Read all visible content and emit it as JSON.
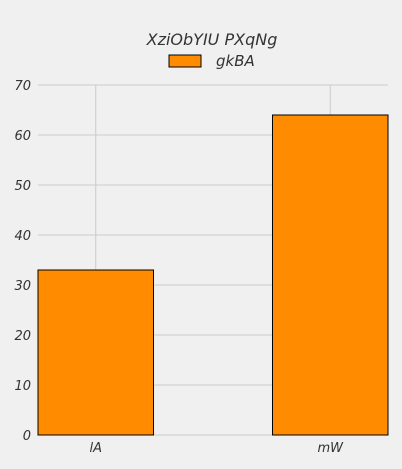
{
  "chart_data": {
    "type": "bar",
    "title": "XziObYIU PXqNg",
    "xlabel": "",
    "ylabel": "",
    "categories": [
      "lA",
      "mW"
    ],
    "series": [
      {
        "name": "gkBA",
        "values": [
          33,
          64
        ],
        "color": "#ff8c00"
      }
    ],
    "ylim": [
      0,
      70
    ],
    "yticks": [
      0,
      10,
      20,
      30,
      40,
      50,
      60,
      70
    ],
    "grid": true,
    "legend_position": "top-center",
    "background_color": "#f0f0f0",
    "bar_edge_color": "#000000",
    "grid_color": "#cbcbcb"
  }
}
